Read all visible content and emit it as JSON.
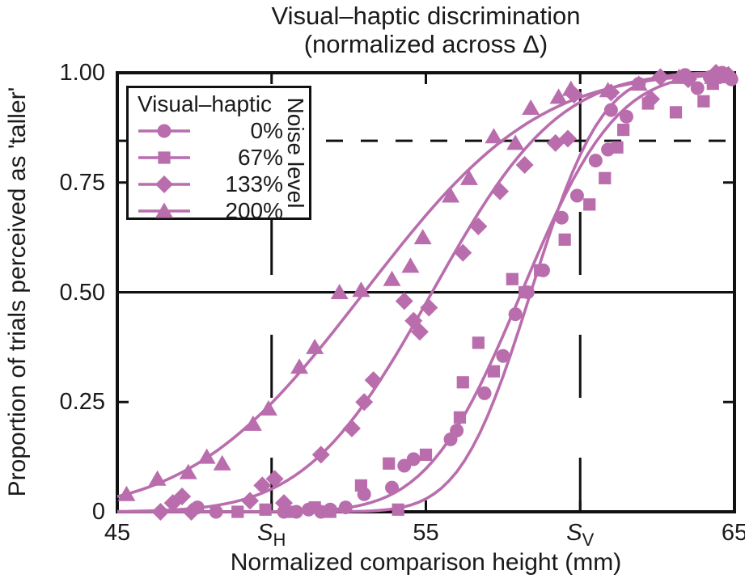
{
  "colors": {
    "series": "#B96DAD",
    "axis": "#111111",
    "background": "#ffffff"
  },
  "legend": {
    "title": "Visual–haptic",
    "side_label": "Noise level"
  },
  "chart_data": {
    "type": "scatter",
    "title": "Visual–haptic discrimination",
    "subtitle": "(normalized across Δ)",
    "xlabel": "Normalized comparison height (mm)",
    "ylabel": "Proportion of trials perceived as 'taller'",
    "xlim": [
      45,
      65
    ],
    "ylim": [
      0,
      1
    ],
    "grid": false,
    "legend_position": "upper-left-inside",
    "xticks": [
      {
        "value": 45,
        "label": "45"
      },
      {
        "value": 50,
        "label": "S",
        "sub": "H",
        "italic": true
      },
      {
        "value": 55,
        "label": "55"
      },
      {
        "value": 60,
        "label": "S",
        "sub": "V",
        "italic": true
      },
      {
        "value": 65,
        "label": "65"
      }
    ],
    "yticks": [
      {
        "value": 1.0,
        "label": "1.00"
      },
      {
        "value": 0.75,
        "label": "0.75"
      },
      {
        "value": 0.5,
        "label": "0.50"
      },
      {
        "value": 0.25,
        "label": "0.25"
      },
      {
        "value": 0.0,
        "label": "0"
      }
    ],
    "reference_lines": [
      {
        "orientation": "horizontal",
        "y": 0.845,
        "style": "dashed",
        "meaning": "discrimination threshold (0.84)"
      },
      {
        "orientation": "horizontal",
        "y": 0.5,
        "style": "solid",
        "meaning": "PSE level (0.50)"
      },
      {
        "orientation": "vertical",
        "x": 50,
        "style": "long-dashed",
        "meaning": "haptic standard S_H"
      },
      {
        "orientation": "vertical",
        "x": 60,
        "style": "long-dashed",
        "meaning": "visual standard S_V"
      }
    ],
    "series": [
      {
        "name": "0%",
        "marker": "circle",
        "color": "#B96DAD",
        "fit": {
          "type": "cumulative-gaussian",
          "mu": 58.4,
          "sigma": 1.8
        },
        "points": [
          [
            47.6,
            0.01
          ],
          [
            48.2,
            0
          ],
          [
            50.4,
            0
          ],
          [
            50.8,
            0
          ],
          [
            51.2,
            0.005
          ],
          [
            51.6,
            0
          ],
          [
            51.9,
            0.005
          ],
          [
            52.4,
            0.01
          ],
          [
            53.0,
            0.04
          ],
          [
            53.9,
            0.055
          ],
          [
            54.3,
            0.105
          ],
          [
            54.6,
            0.12
          ],
          [
            55.8,
            0.165
          ],
          [
            56.0,
            0.185
          ],
          [
            56.9,
            0.27
          ],
          [
            57.5,
            0.355
          ],
          [
            57.9,
            0.45
          ],
          [
            58.3,
            0.5
          ],
          [
            58.8,
            0.55
          ],
          [
            59.4,
            0.67
          ],
          [
            59.9,
            0.72
          ],
          [
            60.5,
            0.8
          ],
          [
            60.9,
            0.825
          ],
          [
            61.0,
            0.915
          ],
          [
            61.5,
            0.9
          ],
          [
            61.9,
            0.975
          ],
          [
            63.4,
            0.995
          ],
          [
            63.8,
            0.965
          ],
          [
            64.2,
            0.99
          ],
          [
            64.6,
            1.0
          ],
          [
            64.9,
            0.985
          ]
        ]
      },
      {
        "name": "67%",
        "marker": "square",
        "color": "#B96DAD",
        "fit": {
          "type": "cumulative-gaussian",
          "mu": 58.1,
          "sigma": 2.4
        },
        "points": [
          [
            48.9,
            0
          ],
          [
            49.8,
            0.005
          ],
          [
            50.7,
            0
          ],
          [
            51.4,
            0.01
          ],
          [
            51.9,
            0
          ],
          [
            52.9,
            0.06
          ],
          [
            53.8,
            0.11
          ],
          [
            54.1,
            0.005
          ],
          [
            55.0,
            0.13
          ],
          [
            56.1,
            0.215
          ],
          [
            56.2,
            0.295
          ],
          [
            56.7,
            0.385
          ],
          [
            57.2,
            0.32
          ],
          [
            57.8,
            0.53
          ],
          [
            58.2,
            0.5
          ],
          [
            58.7,
            0.55
          ],
          [
            59.5,
            0.62
          ],
          [
            60.3,
            0.7
          ],
          [
            60.8,
            0.76
          ],
          [
            61.2,
            0.83
          ],
          [
            61.4,
            0.87
          ],
          [
            62.2,
            0.93
          ],
          [
            63.1,
            0.91
          ],
          [
            64.0,
            0.935
          ],
          [
            64.3,
            0.975
          ],
          [
            64.7,
            0.99
          ]
        ]
      },
      {
        "name": "133%",
        "marker": "diamond",
        "color": "#B96DAD",
        "fit": {
          "type": "cumulative-gaussian",
          "mu": 55.2,
          "sigma": 3.2
        },
        "points": [
          [
            46.4,
            0
          ],
          [
            46.8,
            0.02
          ],
          [
            47.1,
            0.035
          ],
          [
            47.4,
            0
          ],
          [
            49.3,
            0.025
          ],
          [
            49.7,
            0.06
          ],
          [
            50.1,
            0.075
          ],
          [
            50.4,
            0.02
          ],
          [
            51.6,
            0.13
          ],
          [
            52.6,
            0.19
          ],
          [
            53.0,
            0.25
          ],
          [
            53.3,
            0.3
          ],
          [
            54.3,
            0.48
          ],
          [
            54.6,
            0.435
          ],
          [
            54.8,
            0.41
          ],
          [
            55.1,
            0.465
          ],
          [
            56.2,
            0.59
          ],
          [
            56.7,
            0.65
          ],
          [
            57.4,
            0.73
          ],
          [
            58.2,
            0.79
          ],
          [
            59.2,
            0.84
          ],
          [
            59.6,
            0.85
          ],
          [
            59.8,
            0.95
          ],
          [
            61.0,
            0.955
          ],
          [
            62.3,
            0.94
          ],
          [
            62.6,
            0.99
          ],
          [
            63.5,
            0.985
          ],
          [
            64.4,
            1.0
          ],
          [
            64.8,
            0.995
          ]
        ]
      },
      {
        "name": "200%",
        "marker": "triangle",
        "color": "#B96DAD",
        "fit": {
          "type": "cumulative-gaussian",
          "mu": 53.0,
          "sigma": 4.4
        },
        "points": [
          [
            45.3,
            0.04
          ],
          [
            46.3,
            0.075
          ],
          [
            47.3,
            0.09
          ],
          [
            47.9,
            0.125
          ],
          [
            48.4,
            0.11
          ],
          [
            49.4,
            0.2
          ],
          [
            49.9,
            0.235
          ],
          [
            50.9,
            0.33
          ],
          [
            51.4,
            0.375
          ],
          [
            52.2,
            0.5
          ],
          [
            52.9,
            0.505
          ],
          [
            53.9,
            0.53
          ],
          [
            54.5,
            0.56
          ],
          [
            54.9,
            0.625
          ],
          [
            55.8,
            0.72
          ],
          [
            56.4,
            0.76
          ],
          [
            57.2,
            0.855
          ],
          [
            57.9,
            0.84
          ],
          [
            58.4,
            0.92
          ],
          [
            59.3,
            0.945
          ],
          [
            59.7,
            0.963
          ],
          [
            60.9,
            0.96
          ],
          [
            61.9,
            0.975
          ],
          [
            63.2,
            0.99
          ],
          [
            64.3,
            0.99
          ]
        ]
      }
    ]
  }
}
